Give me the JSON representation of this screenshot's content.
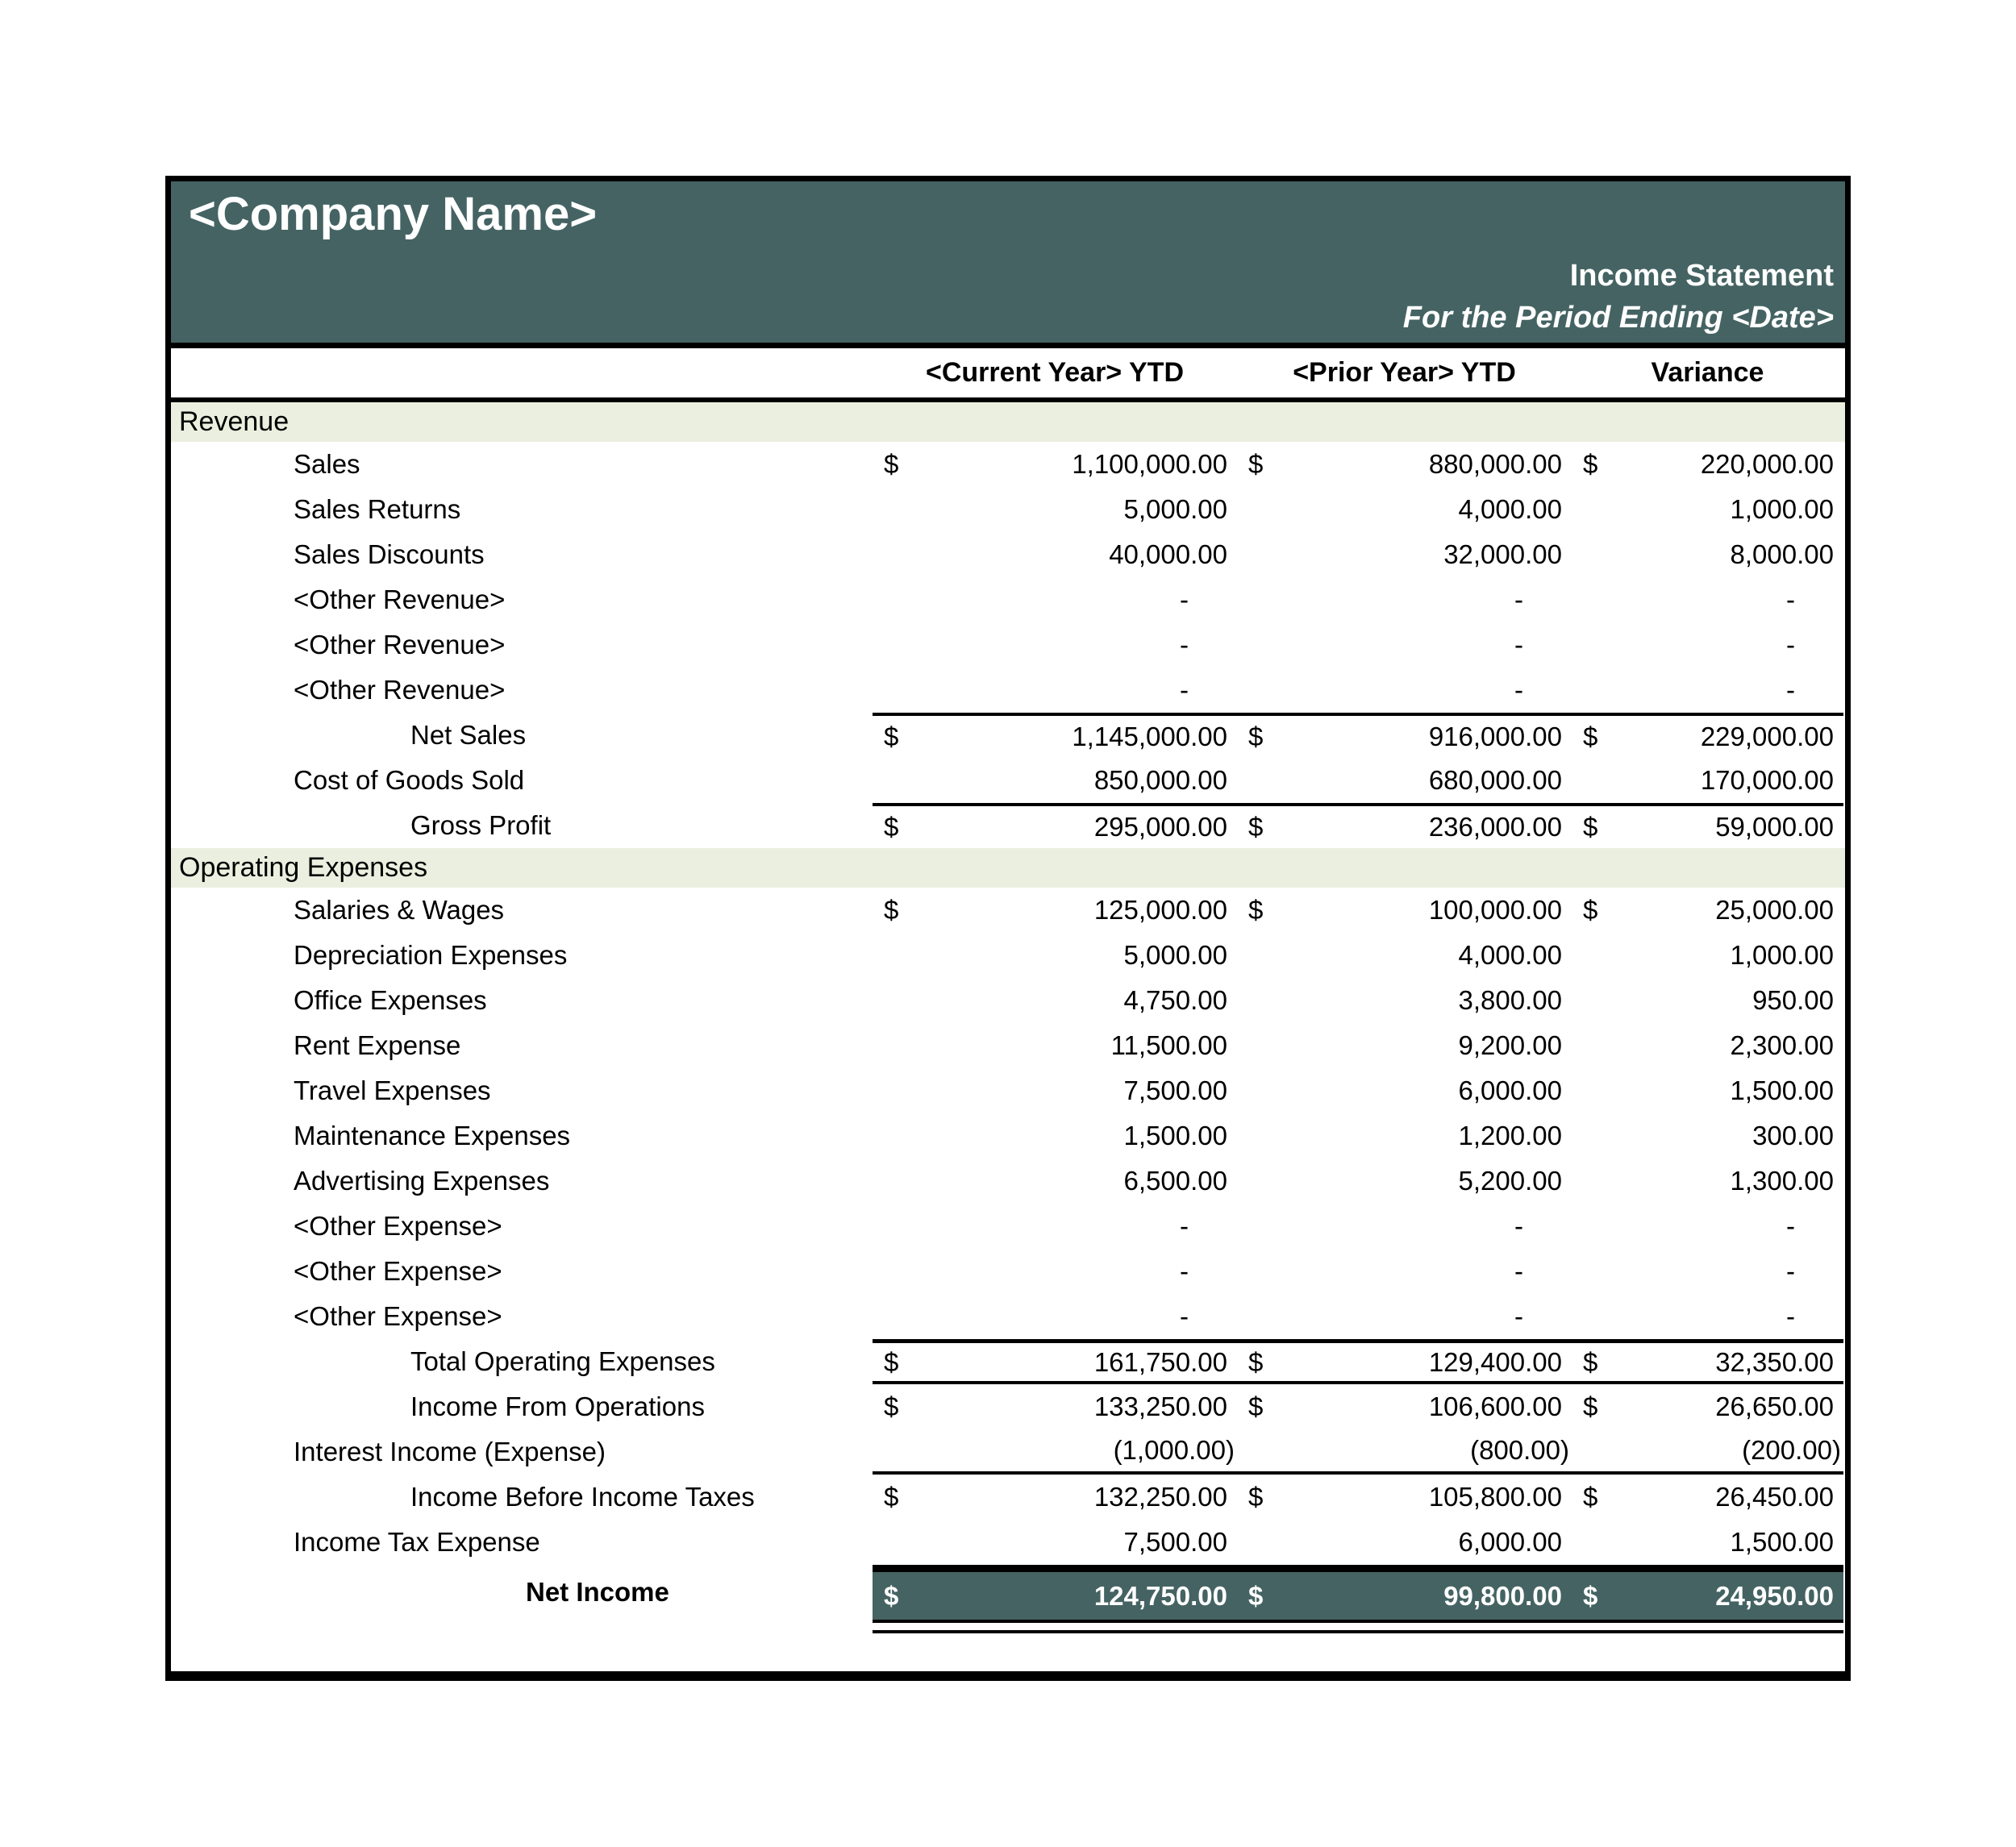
{
  "currency_symbol": "$",
  "header": {
    "company_name": "<Company Name>",
    "report_title": "Income Statement",
    "period_line": "For the Period Ending <Date>"
  },
  "columns": {
    "current": "<Current Year> YTD",
    "prior": "<Prior Year> YTD",
    "variance": "Variance"
  },
  "colors": {
    "teal": "#456363",
    "band_green": "#EBEFDF",
    "text_on_teal": "#FFFFFF",
    "border_black": "#000000"
  },
  "rows": [
    {
      "kind": "band",
      "label": "Revenue"
    },
    {
      "kind": "item",
      "indent": 1,
      "label": "Sales",
      "dollar": true,
      "current": "1,100,000.00",
      "prior": "880,000.00",
      "variance": "220,000.00"
    },
    {
      "kind": "item",
      "indent": 1,
      "label": "Sales Returns",
      "dollar": false,
      "current": "5,000.00",
      "prior": "4,000.00",
      "variance": "1,000.00"
    },
    {
      "kind": "item",
      "indent": 1,
      "label": "Sales Discounts",
      "dollar": false,
      "current": "40,000.00",
      "prior": "32,000.00",
      "variance": "8,000.00"
    },
    {
      "kind": "item",
      "indent": 1,
      "label": "<Other Revenue>",
      "dollar": false,
      "current": "-",
      "prior": "-",
      "variance": "-"
    },
    {
      "kind": "item",
      "indent": 1,
      "label": "<Other Revenue>",
      "dollar": false,
      "current": "-",
      "prior": "-",
      "variance": "-"
    },
    {
      "kind": "item",
      "indent": 1,
      "label": "<Other Revenue>",
      "dollar": false,
      "current": "-",
      "prior": "-",
      "variance": "-"
    },
    {
      "kind": "total",
      "indent": 2,
      "label": "Net Sales",
      "dollar": true,
      "rule": "top",
      "current": "1,145,000.00",
      "prior": "916,000.00",
      "variance": "229,000.00"
    },
    {
      "kind": "item",
      "indent": 1,
      "label": "Cost of Goods Sold",
      "dollar": false,
      "current": "850,000.00",
      "prior": "680,000.00",
      "variance": "170,000.00"
    },
    {
      "kind": "total",
      "indent": 2,
      "label": "Gross Profit",
      "dollar": true,
      "rule": "top",
      "current": "295,000.00",
      "prior": "236,000.00",
      "variance": "59,000.00"
    },
    {
      "kind": "band",
      "label": "Operating Expenses"
    },
    {
      "kind": "item",
      "indent": 1,
      "label": "Salaries & Wages",
      "dollar": true,
      "current": "125,000.00",
      "prior": "100,000.00",
      "variance": "25,000.00"
    },
    {
      "kind": "item",
      "indent": 1,
      "label": "Depreciation Expenses",
      "dollar": false,
      "current": "5,000.00",
      "prior": "4,000.00",
      "variance": "1,000.00"
    },
    {
      "kind": "item",
      "indent": 1,
      "label": "Office Expenses",
      "dollar": false,
      "current": "4,750.00",
      "prior": "3,800.00",
      "variance": "950.00"
    },
    {
      "kind": "item",
      "indent": 1,
      "label": "Rent Expense",
      "dollar": false,
      "current": "11,500.00",
      "prior": "9,200.00",
      "variance": "2,300.00"
    },
    {
      "kind": "item",
      "indent": 1,
      "label": "Travel Expenses",
      "dollar": false,
      "current": "7,500.00",
      "prior": "6,000.00",
      "variance": "1,500.00"
    },
    {
      "kind": "item",
      "indent": 1,
      "label": "Maintenance Expenses",
      "dollar": false,
      "current": "1,500.00",
      "prior": "1,200.00",
      "variance": "300.00"
    },
    {
      "kind": "item",
      "indent": 1,
      "label": "Advertising Expenses",
      "dollar": false,
      "current": "6,500.00",
      "prior": "5,200.00",
      "variance": "1,300.00"
    },
    {
      "kind": "item",
      "indent": 1,
      "label": "<Other Expense>",
      "dollar": false,
      "current": "-",
      "prior": "-",
      "variance": "-"
    },
    {
      "kind": "item",
      "indent": 1,
      "label": "<Other Expense>",
      "dollar": false,
      "current": "-",
      "prior": "-",
      "variance": "-"
    },
    {
      "kind": "item",
      "indent": 1,
      "label": "<Other Expense>",
      "dollar": false,
      "current": "-",
      "prior": "-",
      "variance": "-"
    },
    {
      "kind": "total",
      "indent": 2,
      "label": "Total Operating Expenses",
      "dollar": true,
      "rule": "topbottom",
      "current": "161,750.00",
      "prior": "129,400.00",
      "variance": "32,350.00"
    },
    {
      "kind": "total",
      "indent": 2,
      "label": "Income From Operations",
      "dollar": true,
      "current": "133,250.00",
      "prior": "106,600.00",
      "variance": "26,650.00"
    },
    {
      "kind": "item",
      "indent": 1,
      "label": "Interest Income (Expense)",
      "dollar": false,
      "rule": "bottom",
      "current": "(1,000.00)",
      "prior": "(800.00)",
      "variance": "(200.00)"
    },
    {
      "kind": "total",
      "indent": 2,
      "label": "Income Before Income Taxes",
      "dollar": true,
      "current": "132,250.00",
      "prior": "105,800.00",
      "variance": "26,450.00"
    },
    {
      "kind": "item",
      "indent": 1,
      "label": "Income Tax Expense",
      "dollar": false,
      "current": "7,500.00",
      "prior": "6,000.00",
      "variance": "1,500.00"
    },
    {
      "kind": "net",
      "indent": 3,
      "label": "Net Income",
      "dollar": true,
      "current": "124,750.00",
      "prior": "99,800.00",
      "variance": "24,950.00"
    },
    {
      "kind": "double_rule"
    }
  ]
}
